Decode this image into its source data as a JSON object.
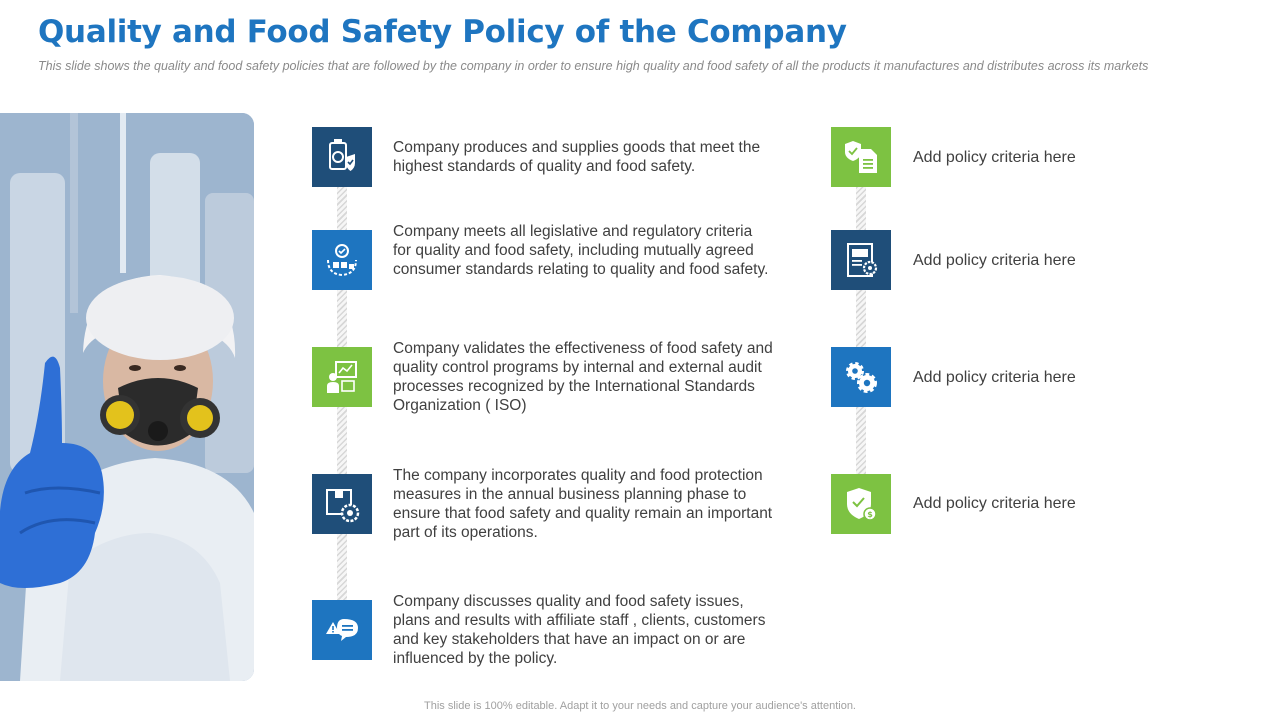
{
  "header": {
    "title": "Quality and Food Safety Policy of the Company",
    "subtitle": "This slide shows the quality and food safety policies that are followed by the company in order to ensure high quality and food safety of all the products it manufactures and distributes across its markets"
  },
  "left_items": [
    {
      "icon": "certified-product-icon",
      "text": "Company produces and supplies goods that meet the highest standards of quality and food safety."
    },
    {
      "icon": "quality-process-icon",
      "text": "Company meets all legislative and regulatory  criteria for quality and food safety, including mutually agreed consumer standards relating to quality and food safety."
    },
    {
      "icon": "audit-control-icon",
      "text": "Company validates the effectiveness of food safety and quality control programs by internal and external audit processes recognized by the International  Standards Organization  ( ISO)"
    },
    {
      "icon": "planning-box-gear-icon",
      "text": "The company incorporates quality and food protection measures in the annual business planning phase to ensure that food safety and quality remain an important part of its operations."
    },
    {
      "icon": "discussion-alert-icon",
      "text": "Company discusses quality and food safety issues, plans and results with affiliate staff , clients, customers and key stakeholders that have an impact on or are influenced by the policy."
    }
  ],
  "right_items": [
    {
      "icon": "shield-document-icon",
      "text": "Add policy criteria here"
    },
    {
      "icon": "document-gear-icon",
      "text": "Add policy criteria here"
    },
    {
      "icon": "gears-icon",
      "text": "Add policy criteria here"
    },
    {
      "icon": "shield-dollar-icon",
      "text": "Add policy criteria here"
    }
  ],
  "footer": "This slide is 100% editable. Adapt it to your needs and capture your audience's attention.",
  "colors": {
    "title": "#1e75c0",
    "dark": "#1f4e79",
    "blue": "#1e75c0",
    "green": "#7dc242"
  }
}
